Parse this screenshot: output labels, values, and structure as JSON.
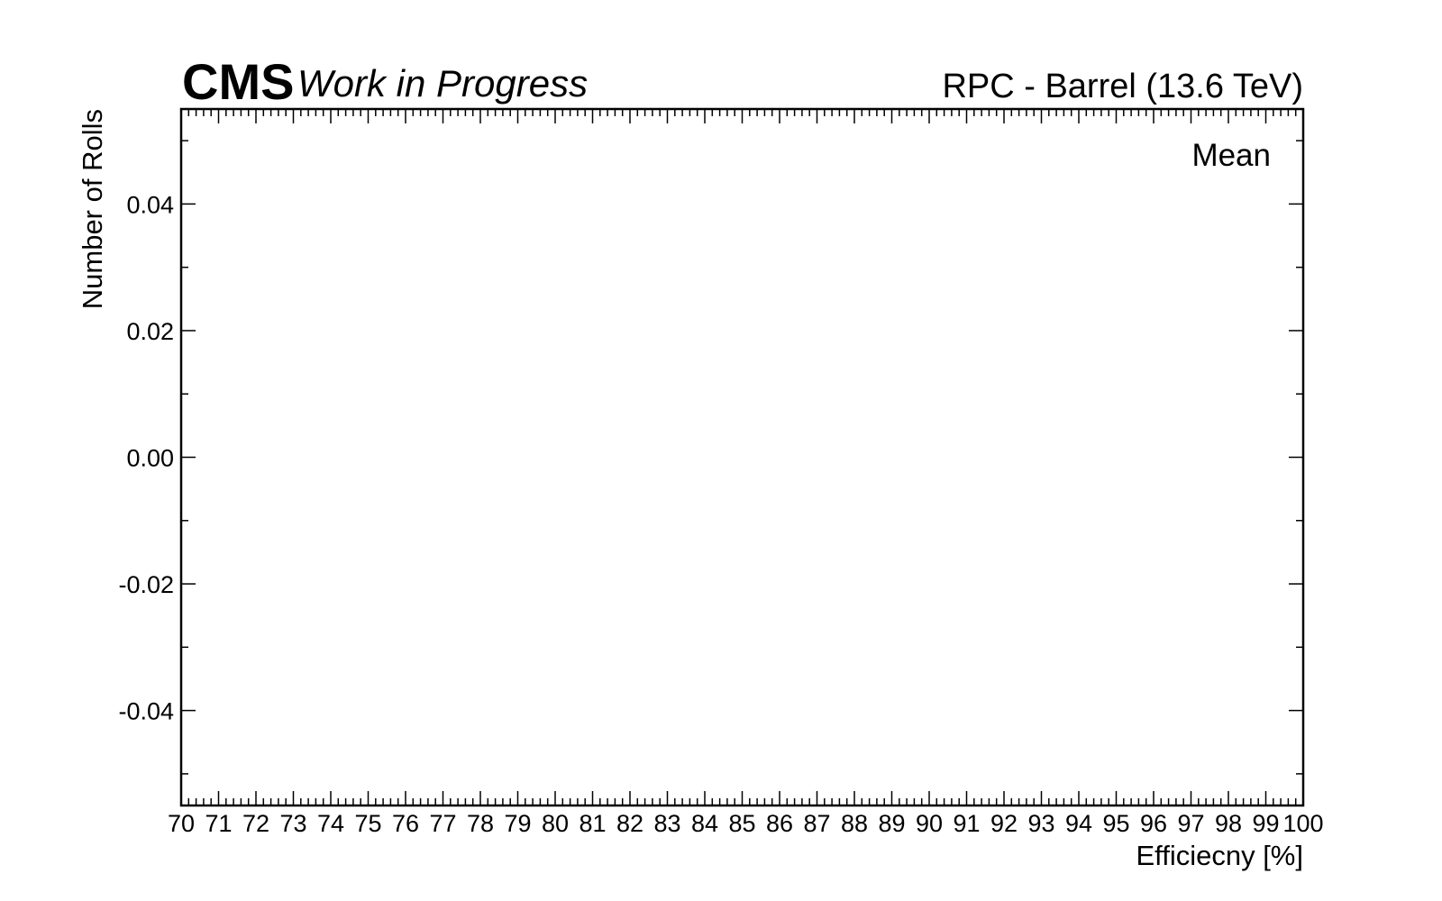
{
  "header": {
    "cms_label": "CMS",
    "extra_label": "Work in Progress",
    "lumi_label": "RPC - Barrel (13.6 TeV)"
  },
  "legend": {
    "entries": [
      "Mean"
    ],
    "placement": "top-right"
  },
  "chart_data": {
    "type": "bar",
    "xlabel": "Efficiecny [%]",
    "ylabel": "Number of Rolls",
    "xlim": [
      70,
      100
    ],
    "ylim": [
      -0.055,
      0.055
    ],
    "x_ticks": [
      "70",
      "71",
      "72",
      "73",
      "74",
      "75",
      "76",
      "77",
      "78",
      "79",
      "80",
      "81",
      "82",
      "83",
      "84",
      "85",
      "86",
      "87",
      "88",
      "89",
      "90",
      "91",
      "92",
      "93",
      "94",
      "95",
      "96",
      "97",
      "98",
      "99",
      "100"
    ],
    "y_ticks": [
      "-0.04",
      "-0.02",
      "0.00",
      "0.02",
      "0.04"
    ],
    "y_tick_values": [
      -0.04,
      -0.02,
      0.0,
      0.02,
      0.04
    ],
    "series": [],
    "grid": false
  }
}
